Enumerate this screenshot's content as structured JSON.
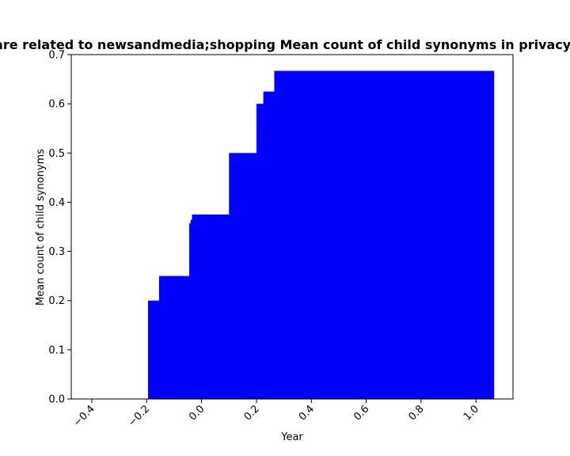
{
  "chart_data": {
    "type": "area",
    "title": "Sites are related to newsandmedia;shopping Mean count of child synonyms in privacy policies",
    "xlabel": "Year",
    "ylabel": "Mean count of child synonyms",
    "xlim": [
      -0.475,
      1.135
    ],
    "ylim": [
      0,
      0.7
    ],
    "xticks": [
      -0.4,
      -0.2,
      0.0,
      0.2,
      0.4,
      0.6,
      0.8,
      1.0
    ],
    "xtick_labels": [
      "−0.4",
      "−0.2",
      "0.0",
      "0.2",
      "0.4",
      "0.6",
      "0.8",
      "1.0"
    ],
    "yticks": [
      0.0,
      0.1,
      0.2,
      0.3,
      0.4,
      0.5,
      0.6,
      0.7
    ],
    "ytick_labels": [
      "0.0",
      "0.1",
      "0.2",
      "0.3",
      "0.4",
      "0.5",
      "0.6",
      "0.7"
    ],
    "grid": false,
    "fill_color": "#0000ff",
    "step_edges": [
      -0.195,
      -0.155,
      -0.045,
      -0.04,
      -0.035,
      0.1,
      0.2,
      0.225,
      0.265,
      1.065
    ],
    "step_values": [
      0.2,
      0.25,
      0.357,
      0.364,
      0.375,
      0.5,
      0.6,
      0.625,
      0.667
    ]
  }
}
